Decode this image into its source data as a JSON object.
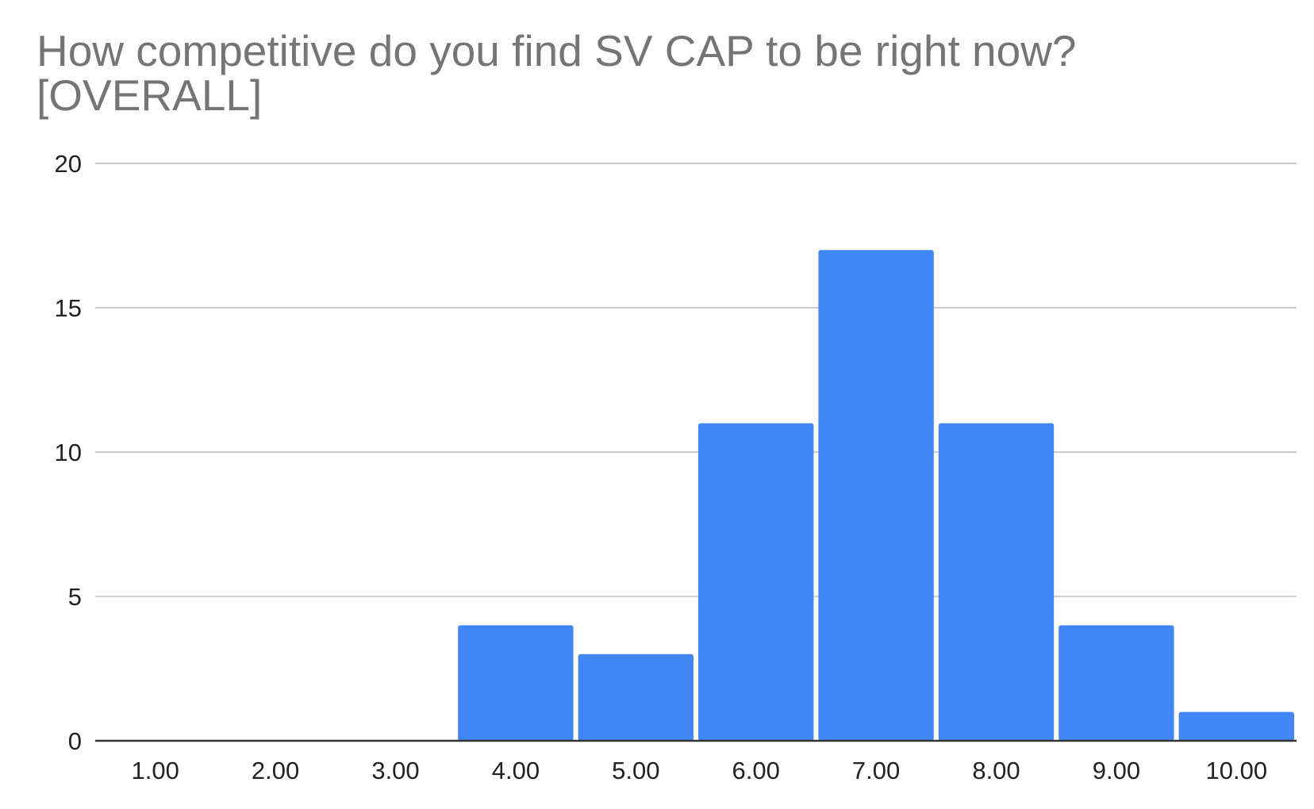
{
  "chart_data": {
    "type": "bar",
    "title": "How competitive do you find SV CAP to be right now? [OVERALL]",
    "xlabel": "",
    "ylabel": "",
    "categories": [
      "1.00",
      "2.00",
      "3.00",
      "4.00",
      "5.00",
      "6.00",
      "7.00",
      "8.00",
      "9.00",
      "10.00"
    ],
    "values": [
      0,
      0,
      0,
      4,
      3,
      11,
      17,
      11,
      4,
      1
    ],
    "ylim": [
      0,
      20
    ],
    "yticks": [
      "0",
      "5",
      "10",
      "15",
      "20"
    ],
    "grid": true,
    "legend": "none",
    "bar_color": "#4285f4",
    "grid_color": "#cccccc",
    "axis_color": "#333333"
  }
}
